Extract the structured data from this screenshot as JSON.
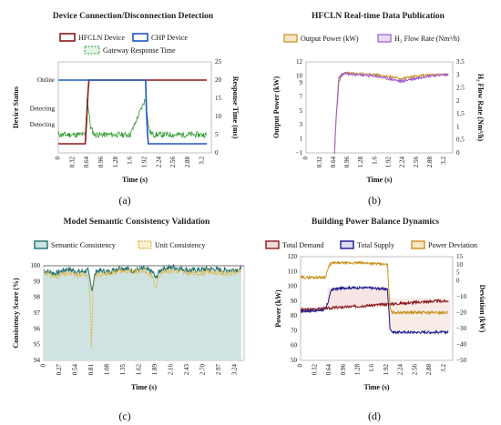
{
  "captions": [
    "(a)",
    "(b)",
    "(c)",
    "(d)"
  ],
  "chart_data": [
    {
      "id": "a",
      "type": "line",
      "title": "Device Connection/Disconnection Detection",
      "xlabel": "Time (s)",
      "ylabel": "Device Status",
      "y2label": "Response Time (ms)",
      "x_ticks": [
        "0",
        "0.32",
        "0.64",
        "0.96",
        "1.28",
        "1.6",
        "1.92",
        "2.24",
        "2.56",
        "2.88",
        "3.2"
      ],
      "xlim": [
        0,
        3.4
      ],
      "status_ticks": [
        "Online",
        "Detecting",
        "Detecting"
      ],
      "y2_ticks": [
        "0",
        "5",
        "10",
        "15",
        "20",
        "25"
      ],
      "y2lim": [
        0,
        25
      ],
      "series": [
        {
          "name": "HFCLN Device",
          "color": "#8b1a1a",
          "x": [
            0,
            0.6,
            0.64,
            0.66,
            0.68,
            0.9,
            3.3
          ],
          "status": [
            0,
            0,
            0.5,
            0.8,
            1,
            1,
            1
          ]
        },
        {
          "name": "CHP Device",
          "color": "#1f57c4",
          "x": [
            0,
            1.5,
            1.94,
            1.96,
            1.98,
            2.0,
            3.3
          ],
          "status": [
            1,
            1,
            1,
            0.5,
            0.2,
            0,
            0
          ]
        },
        {
          "name": "Gateway Response Time",
          "color": "#2e9a2e",
          "x": [
            0,
            0.6,
            0.64,
            0.68,
            0.72,
            0.8,
            1.6,
            1.94,
            1.98,
            2.02,
            2.1,
            3.3
          ],
          "values": [
            5,
            5,
            15,
            11,
            7,
            5,
            5,
            15,
            10,
            6,
            5,
            5
          ]
        }
      ]
    },
    {
      "id": "b",
      "type": "line",
      "title": "HFCLN Real-time Data Publication",
      "xlabel": "Time (s)",
      "ylabel": "Output Power (kW)",
      "y2label": "H₂ Flow Rate (Nm³/h)",
      "x_ticks": [
        "0",
        "0.32",
        "0.64",
        "0.96",
        "1.28",
        "1.6",
        "1.92",
        "2.24",
        "2.56",
        "2.88",
        "3.2"
      ],
      "xlim": [
        0,
        3.4
      ],
      "y_ticks": [
        "−1",
        "1",
        "3",
        "5",
        "7",
        "9",
        "10",
        "12"
      ],
      "y_tick_values": [
        -1,
        1,
        3,
        5,
        7,
        9,
        10,
        12
      ],
      "ylim": [
        -1,
        12
      ],
      "y2_ticks": [
        "0",
        "0.5",
        "1",
        "1.5",
        "2",
        "2.5",
        "3",
        "3.5"
      ],
      "y2lim": [
        0,
        3.5
      ],
      "series": [
        {
          "name": "Output Power (kW)",
          "color": "#c8901e",
          "x": [
            0.66,
            0.7,
            0.76,
            0.82,
            0.9,
            1.2,
            1.6,
            1.92,
            2.2,
            2.5,
            2.8,
            3.1,
            3.3
          ],
          "values": [
            -0.5,
            4,
            9,
            10.1,
            10.4,
            10.3,
            10.2,
            9.9,
            9.6,
            9.9,
            10.1,
            10.2,
            10.2
          ]
        },
        {
          "name": "H₂ Flow Rate (Nm³/h)",
          "color": "#9b59d0",
          "x": [
            0.66,
            0.7,
            0.76,
            0.82,
            0.9,
            1.2,
            1.6,
            1.92,
            2.2,
            2.5,
            2.8,
            3.1,
            3.3
          ],
          "values": [
            0,
            1.4,
            2.9,
            3.0,
            3.05,
            3.0,
            2.95,
            2.85,
            2.75,
            2.85,
            2.95,
            3.0,
            3.0
          ]
        }
      ]
    },
    {
      "id": "c",
      "type": "area",
      "title": "Model Semantic Consistency Validation",
      "xlabel": "Time (s)",
      "ylabel": "Consistency Score (%)",
      "x_ticks": [
        "0",
        "0.27",
        "0.54",
        "0.81",
        "1.08",
        "1.35",
        "1.62",
        "1.89",
        "2.16",
        "2.43",
        "2.70",
        "2.97",
        "3.24"
      ],
      "xlim": [
        0,
        3.4
      ],
      "y_ticks": [
        "94",
        "95",
        "96",
        "97",
        "98",
        "99",
        "100"
      ],
      "ylim": [
        94,
        100
      ],
      "series": [
        {
          "name": "Semantic Consistency",
          "color": "#1e6e6e",
          "fill": "#cfe3e3",
          "x": [
            0,
            0.2,
            0.4,
            0.6,
            0.75,
            0.8,
            0.82,
            0.86,
            0.9,
            1.1,
            1.3,
            1.5,
            1.7,
            1.85,
            1.9,
            1.94,
            2.0,
            2.2,
            2.5,
            2.8,
            3.1,
            3.35
          ],
          "values": [
            99.7,
            99.5,
            99.8,
            99.6,
            99.7,
            98.8,
            98.5,
            99.3,
            99.7,
            99.6,
            99.9,
            99.7,
            99.8,
            99.6,
            99.2,
            99.5,
            99.8,
            99.9,
            99.7,
            99.8,
            99.7,
            99.8
          ]
        },
        {
          "name": "Unit Consistency",
          "color": "#e1b84a",
          "x": [
            0,
            0.2,
            0.4,
            0.6,
            0.75,
            0.79,
            0.81,
            0.84,
            0.88,
            1.1,
            1.3,
            1.5,
            1.7,
            1.85,
            1.9,
            1.94,
            2.0,
            2.2,
            2.5,
            2.8,
            3.1,
            3.35
          ],
          "values": [
            99.6,
            99.3,
            99.5,
            99.4,
            99.5,
            97.5,
            94.8,
            98.5,
            99.4,
            99.5,
            99.7,
            99.6,
            99.7,
            99.3,
            98.5,
            99.2,
            99.6,
            99.7,
            99.5,
            99.6,
            99.5,
            99.6
          ]
        }
      ]
    },
    {
      "id": "d",
      "type": "line",
      "title": "Building Power Balance Dynamics",
      "xlabel": "Time (s)",
      "ylabel": "Power (kW)",
      "y2label": "Deviation (kW)",
      "x_ticks": [
        "0",
        "0.32",
        "0.64",
        "0.96",
        "1.28",
        "1.6",
        "1.92",
        "2.24",
        "2.56",
        "2.88",
        "3.2"
      ],
      "xlim": [
        0,
        3.4
      ],
      "y_ticks": [
        "50",
        "60",
        "70",
        "80",
        "90",
        "100",
        "110",
        "120"
      ],
      "ylim": [
        50,
        120
      ],
      "y2_ticks": [
        "15",
        "10",
        "5",
        "0",
        "−10",
        "−20",
        "−30",
        "−40",
        "−50"
      ],
      "y2_tick_values": [
        15,
        10,
        5,
        0,
        -10,
        -20,
        -30,
        -40,
        -50
      ],
      "y2lim": [
        -50,
        15
      ],
      "series": [
        {
          "name": "Total Demand",
          "color": "#8b1a1a",
          "x": [
            0,
            0.5,
            1.0,
            1.5,
            2.0,
            2.5,
            3.0,
            3.3
          ],
          "values": [
            84,
            85,
            86,
            87,
            88,
            89,
            90,
            90
          ]
        },
        {
          "name": "Total Supply",
          "color": "#1a1a8c",
          "x": [
            0,
            0.55,
            0.62,
            0.66,
            0.7,
            1.0,
            1.5,
            1.94,
            1.97,
            2.0,
            2.05,
            2.5,
            3.0,
            3.3
          ],
          "values": [
            83,
            84,
            90,
            95,
            98,
            99,
            99,
            98,
            85,
            72,
            69,
            69,
            69,
            69
          ]
        },
        {
          "name": "Power Deviation",
          "color": "#c8901e",
          "x": [
            0,
            0.55,
            0.62,
            0.66,
            0.7,
            1.0,
            1.5,
            1.94,
            1.97,
            2.0,
            2.05,
            2.5,
            3.0,
            3.3
          ],
          "values": [
            2,
            2,
            8,
            10,
            11,
            11,
            11,
            10,
            -5,
            -17,
            -20,
            -20,
            -20,
            -20
          ]
        }
      ]
    }
  ]
}
